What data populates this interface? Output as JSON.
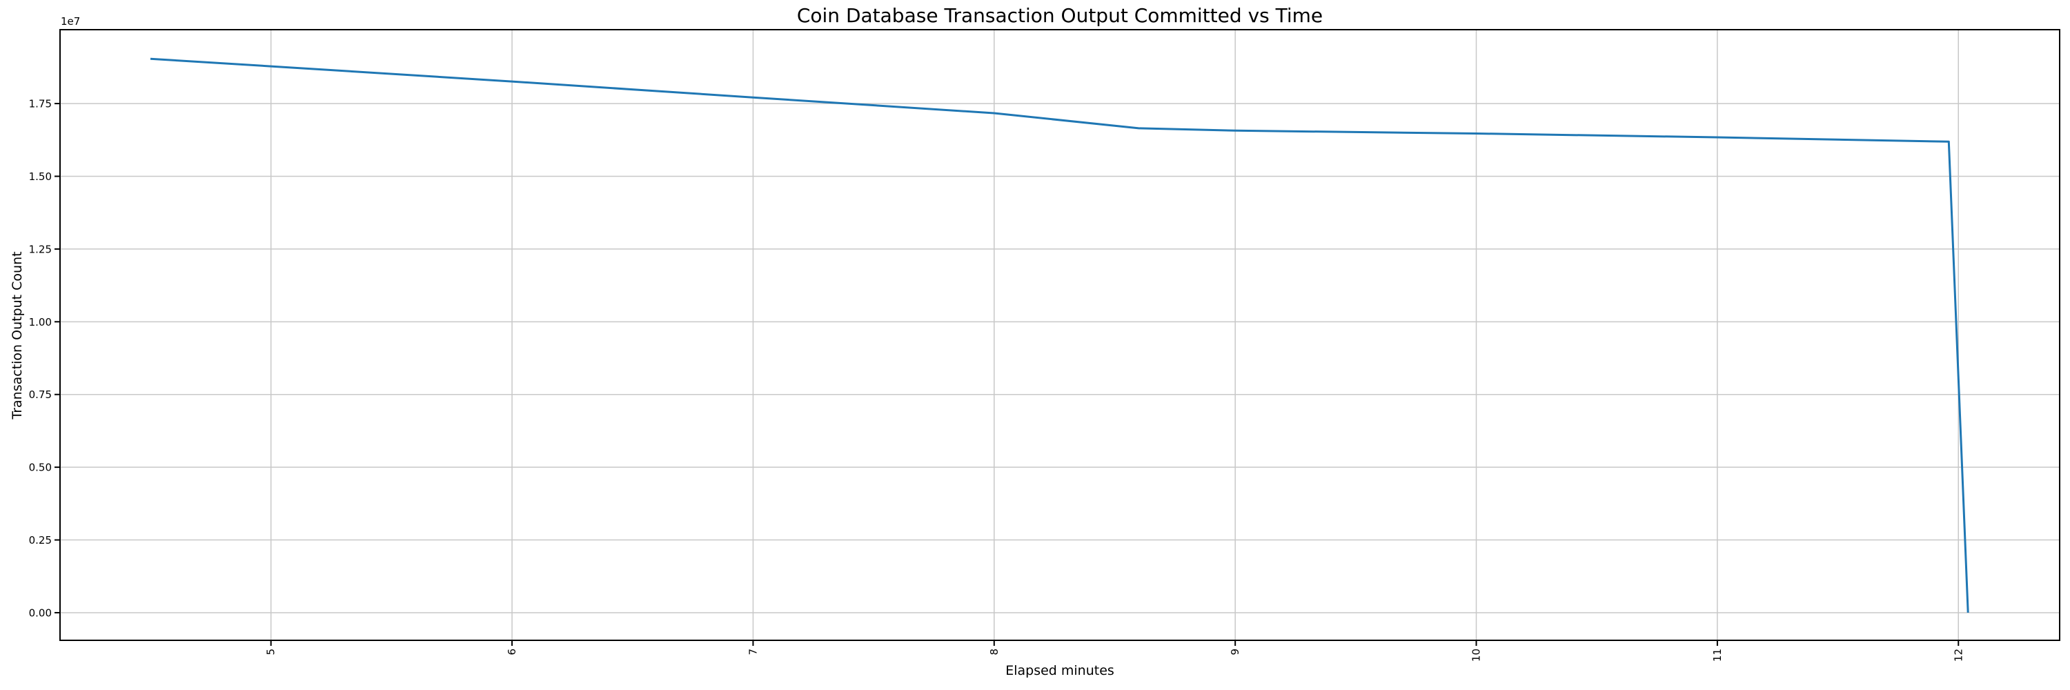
{
  "chart_data": {
    "type": "line",
    "title": "Coin Database Transaction Output Committed vs Time",
    "xlabel": "Elapsed minutes",
    "ylabel": "Transaction Output Count",
    "y_offset_text": "1e7",
    "x": [
      4.5,
      5.0,
      6.0,
      7.0,
      8.0,
      8.6,
      9.0,
      10.0,
      11.0,
      11.96,
      12.04
    ],
    "y": [
      19040000,
      18780000,
      18260000,
      17710000,
      17170000,
      16650000,
      16570000,
      16470000,
      16340000,
      16190000,
      0
    ],
    "xlim": [
      4.125,
      12.42
    ],
    "ylim": [
      -950000,
      20040000
    ],
    "x_ticks": {
      "values": [
        5,
        6,
        7,
        8,
        9,
        10,
        11,
        12
      ],
      "labels": [
        "5",
        "6",
        "7",
        "8",
        "9",
        "10",
        "11",
        "12"
      ],
      "rotation": 90
    },
    "y_ticks": {
      "values": [
        0,
        2500000,
        5000000,
        7500000,
        10000000,
        12500000,
        15000000,
        17500000
      ],
      "labels": [
        "0.00",
        "0.25",
        "0.50",
        "0.75",
        "1.00",
        "1.25",
        "1.50",
        "1.75"
      ]
    },
    "grid": true,
    "legend": false,
    "line_color": "#1f77b4",
    "grid_color": "#c8c8c8",
    "spine_color": "#000000",
    "background": "#ffffff"
  }
}
